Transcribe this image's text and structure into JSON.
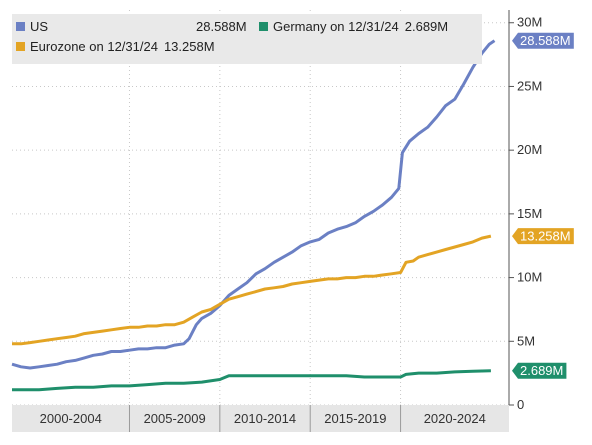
{
  "chart_data": {
    "type": "line",
    "y_unit": "M",
    "ylim": [
      0,
      31
    ],
    "y_ticks": [
      {
        "value": 0,
        "label": "0"
      },
      {
        "value": 5,
        "label": "5M"
      },
      {
        "value": 10,
        "label": "10M"
      },
      {
        "value": 15,
        "label": "15M"
      },
      {
        "value": 20,
        "label": "20M"
      },
      {
        "value": 25,
        "label": "25M"
      },
      {
        "value": 30,
        "label": "30M"
      }
    ],
    "x_range": [
      1998.5,
      2026.0
    ],
    "x_groups": [
      {
        "label": "2000-2004",
        "start": 1998.5,
        "end": 2005.0
      },
      {
        "label": "2005-2009",
        "start": 2005.0,
        "end": 2010.0
      },
      {
        "label": "2010-2014",
        "start": 2010.0,
        "end": 2015.0
      },
      {
        "label": "2015-2019",
        "start": 2015.0,
        "end": 2020.0
      },
      {
        "label": "2020-2024",
        "start": 2020.0,
        "end": 2026.0
      }
    ],
    "grid": true,
    "legend_position": "top-left",
    "series": [
      {
        "name": "US",
        "legend_label": "US",
        "legend_value": "28.588M",
        "tag": "28.588M",
        "color": "#6b80c4",
        "points": [
          [
            1998.5,
            3.2
          ],
          [
            1999,
            3.0
          ],
          [
            1999.5,
            2.9
          ],
          [
            2000,
            3.0
          ],
          [
            2000.5,
            3.1
          ],
          [
            2001,
            3.2
          ],
          [
            2001.5,
            3.4
          ],
          [
            2002,
            3.5
          ],
          [
            2002.5,
            3.7
          ],
          [
            2003,
            3.9
          ],
          [
            2003.5,
            4.0
          ],
          [
            2004,
            4.2
          ],
          [
            2004.5,
            4.2
          ],
          [
            2005,
            4.3
          ],
          [
            2005.5,
            4.4
          ],
          [
            2006,
            4.4
          ],
          [
            2006.5,
            4.5
          ],
          [
            2007,
            4.5
          ],
          [
            2007.5,
            4.7
          ],
          [
            2008,
            4.8
          ],
          [
            2008.3,
            5.2
          ],
          [
            2008.7,
            6.3
          ],
          [
            2009,
            6.8
          ],
          [
            2009.5,
            7.2
          ],
          [
            2010,
            7.8
          ],
          [
            2010.5,
            8.6
          ],
          [
            2011,
            9.1
          ],
          [
            2011.5,
            9.6
          ],
          [
            2012,
            10.3
          ],
          [
            2012.5,
            10.7
          ],
          [
            2013,
            11.2
          ],
          [
            2013.5,
            11.6
          ],
          [
            2014,
            12.0
          ],
          [
            2014.5,
            12.5
          ],
          [
            2015,
            12.8
          ],
          [
            2015.5,
            13.0
          ],
          [
            2016,
            13.5
          ],
          [
            2016.5,
            13.8
          ],
          [
            2017,
            14.0
          ],
          [
            2017.5,
            14.3
          ],
          [
            2018,
            14.8
          ],
          [
            2018.5,
            15.2
          ],
          [
            2019,
            15.7
          ],
          [
            2019.5,
            16.3
          ],
          [
            2019.9,
            17.0
          ],
          [
            2020.1,
            19.8
          ],
          [
            2020.5,
            20.7
          ],
          [
            2021,
            21.3
          ],
          [
            2021.5,
            21.8
          ],
          [
            2022,
            22.6
          ],
          [
            2022.5,
            23.5
          ],
          [
            2023,
            24.0
          ],
          [
            2023.5,
            25.2
          ],
          [
            2024,
            26.5
          ],
          [
            2024.5,
            27.6
          ],
          [
            2024.9,
            28.3
          ],
          [
            2025.2,
            28.588
          ]
        ]
      },
      {
        "name": "Eurozone",
        "legend_label": "Eurozone on 12/31/24",
        "legend_value": "13.258M",
        "tag": "13.258M",
        "color": "#e3a424",
        "points": [
          [
            1998.5,
            4.8
          ],
          [
            1999,
            4.8
          ],
          [
            1999.5,
            4.9
          ],
          [
            2000,
            5.0
          ],
          [
            2000.5,
            5.1
          ],
          [
            2001,
            5.2
          ],
          [
            2001.5,
            5.3
          ],
          [
            2002,
            5.4
          ],
          [
            2002.5,
            5.6
          ],
          [
            2003,
            5.7
          ],
          [
            2003.5,
            5.8
          ],
          [
            2004,
            5.9
          ],
          [
            2004.5,
            6.0
          ],
          [
            2005,
            6.1
          ],
          [
            2005.5,
            6.1
          ],
          [
            2006,
            6.2
          ],
          [
            2006.5,
            6.2
          ],
          [
            2007,
            6.3
          ],
          [
            2007.5,
            6.3
          ],
          [
            2008,
            6.5
          ],
          [
            2008.5,
            6.9
          ],
          [
            2009,
            7.3
          ],
          [
            2009.5,
            7.5
          ],
          [
            2010,
            7.9
          ],
          [
            2010.5,
            8.3
          ],
          [
            2011,
            8.5
          ],
          [
            2011.5,
            8.7
          ],
          [
            2012,
            8.9
          ],
          [
            2012.5,
            9.1
          ],
          [
            2013,
            9.2
          ],
          [
            2013.5,
            9.3
          ],
          [
            2014,
            9.5
          ],
          [
            2014.5,
            9.6
          ],
          [
            2015,
            9.7
          ],
          [
            2015.5,
            9.8
          ],
          [
            2016,
            9.9
          ],
          [
            2016.5,
            9.9
          ],
          [
            2017,
            10.0
          ],
          [
            2017.5,
            10.0
          ],
          [
            2018,
            10.1
          ],
          [
            2018.5,
            10.1
          ],
          [
            2019,
            10.2
          ],
          [
            2019.5,
            10.3
          ],
          [
            2020,
            10.4
          ],
          [
            2020.3,
            11.2
          ],
          [
            2020.7,
            11.3
          ],
          [
            2021,
            11.6
          ],
          [
            2021.5,
            11.8
          ],
          [
            2022,
            12.0
          ],
          [
            2022.5,
            12.2
          ],
          [
            2023,
            12.4
          ],
          [
            2023.5,
            12.6
          ],
          [
            2024,
            12.8
          ],
          [
            2024.5,
            13.1
          ],
          [
            2025.0,
            13.258
          ]
        ]
      },
      {
        "name": "Germany",
        "legend_label": "Germany on 12/31/24",
        "legend_value": "2.689M",
        "tag": "2.689M",
        "color": "#1f8f6b",
        "points": [
          [
            1998.5,
            1.2
          ],
          [
            2000,
            1.2
          ],
          [
            2001,
            1.3
          ],
          [
            2002,
            1.4
          ],
          [
            2003,
            1.4
          ],
          [
            2004,
            1.5
          ],
          [
            2005,
            1.5
          ],
          [
            2006,
            1.6
          ],
          [
            2007,
            1.7
          ],
          [
            2008,
            1.7
          ],
          [
            2009,
            1.8
          ],
          [
            2010,
            2.0
          ],
          [
            2010.5,
            2.3
          ],
          [
            2011,
            2.3
          ],
          [
            2012,
            2.3
          ],
          [
            2013,
            2.3
          ],
          [
            2014,
            2.3
          ],
          [
            2015,
            2.3
          ],
          [
            2016,
            2.3
          ],
          [
            2017,
            2.3
          ],
          [
            2018,
            2.2
          ],
          [
            2019,
            2.2
          ],
          [
            2020,
            2.2
          ],
          [
            2020.3,
            2.4
          ],
          [
            2021,
            2.5
          ],
          [
            2022,
            2.5
          ],
          [
            2023,
            2.6
          ],
          [
            2024,
            2.65
          ],
          [
            2025.0,
            2.689
          ]
        ]
      }
    ]
  }
}
